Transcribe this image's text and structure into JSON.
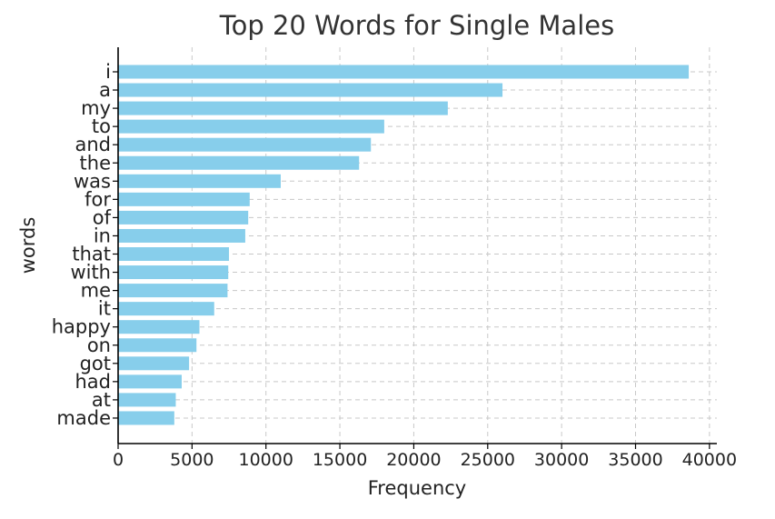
{
  "chart_data": {
    "type": "bar",
    "orientation": "horizontal",
    "title": "Top 20 Words for Single Males",
    "xlabel": "Frequency",
    "ylabel": "words",
    "xlim": [
      0,
      40500
    ],
    "xticks": [
      0,
      5000,
      10000,
      15000,
      20000,
      25000,
      30000,
      35000,
      40000
    ],
    "grid": true,
    "bar_color": "#87ceeb",
    "categories": [
      "i",
      "a",
      "my",
      "to",
      "and",
      "the",
      "was",
      "for",
      "of",
      "in",
      "that",
      "with",
      "me",
      "it",
      "happy",
      "on",
      "got",
      "had",
      "at",
      "made"
    ],
    "values": [
      38600,
      26000,
      22300,
      18000,
      17100,
      16300,
      11000,
      8900,
      8800,
      8600,
      7500,
      7450,
      7400,
      6500,
      5500,
      5300,
      4800,
      4300,
      3900,
      3800
    ]
  }
}
